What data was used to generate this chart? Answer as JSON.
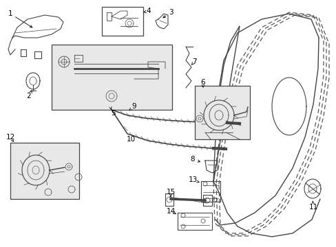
{
  "bg_color": "#ffffff",
  "fig_width": 4.89,
  "fig_height": 3.6,
  "dpi": 100,
  "line_color": "#444444",
  "box_face": "#e8e8e8"
}
